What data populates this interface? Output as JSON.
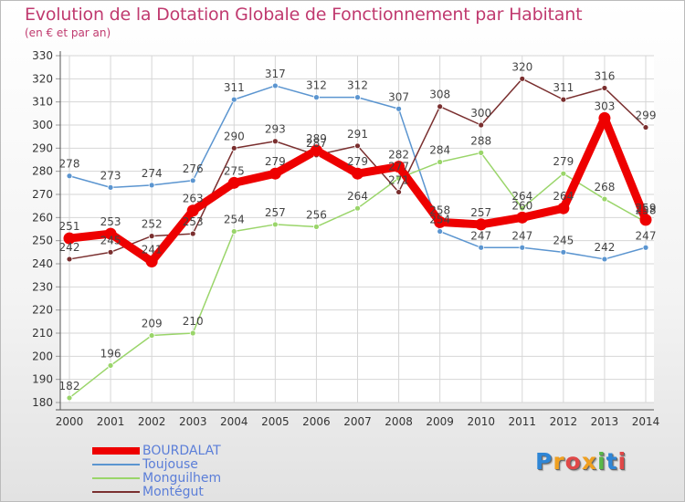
{
  "chart_data": {
    "type": "line",
    "title": "Evolution de la Dotation Globale de Fonctionnement par Habitant",
    "subtitle": "(en € et par an)",
    "xlabel": "",
    "ylabel": "",
    "ylim": [
      180,
      330
    ],
    "ytick_step": 10,
    "grid": true,
    "categories": [
      "2000",
      "2001",
      "2002",
      "2003",
      "2004",
      "2005",
      "2006",
      "2007",
      "2008",
      "2009",
      "2010",
      "2011",
      "2012",
      "2013",
      "2014"
    ],
    "series": [
      {
        "name": "Toujouse",
        "color": "#5b95d0",
        "values": [
          278,
          273,
          274,
          276,
          311,
          317,
          312,
          312,
          307,
          254,
          247,
          247,
          245,
          242,
          247
        ]
      },
      {
        "name": "Monguilhem",
        "color": "#9ad56a",
        "values": [
          182,
          196,
          209,
          210,
          254,
          257,
          256,
          264,
          277,
          284,
          288,
          264,
          279,
          268,
          258
        ]
      },
      {
        "name": "Montégut",
        "color": "#7a2f2f",
        "values": [
          242,
          245,
          252,
          253,
          290,
          293,
          287,
          291,
          271,
          308,
          300,
          320,
          311,
          316,
          299
        ]
      },
      {
        "name": "BOURDALAT",
        "color": "#ee0000",
        "values": [
          251,
          253,
          241,
          263,
          275,
          279,
          289,
          279,
          282,
          258,
          257,
          260,
          264,
          303,
          259
        ]
      }
    ],
    "legend_order": [
      "BOURDALAT",
      "Toujouse",
      "Monguilhem",
      "Montégut"
    ],
    "legend_position": "bottom-left"
  },
  "logo": {
    "letters": [
      "P",
      "r",
      "o",
      "x",
      "i",
      "t",
      "i"
    ],
    "colors": [
      "#2f86d6",
      "#f0a020",
      "#e04848",
      "#f0a020",
      "#58b848",
      "#2f86d6",
      "#e04848"
    ]
  }
}
